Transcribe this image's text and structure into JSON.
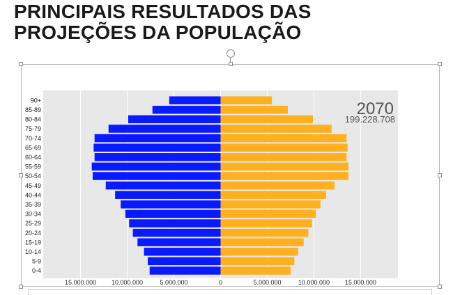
{
  "slide": {
    "title_line1": "PRINCIPAIS RESULTADOS DAS",
    "title_line2": "PROJEÇÕES DA POPULAÇÃO"
  },
  "chart_data": {
    "type": "bar",
    "orientation": "horizontal-population-pyramid",
    "annotation_year": "2070",
    "annotation_total": "199.228.708",
    "categories": [
      "0-4",
      "5-9",
      "10-14",
      "15-19",
      "20-24",
      "25-29",
      "30-34",
      "35-39",
      "40-44",
      "45-49",
      "50-54",
      "55-59",
      "60-64",
      "65-69",
      "70-74",
      "75-79",
      "80-84",
      "85-89",
      "90+"
    ],
    "series": [
      {
        "side": "left",
        "color": "#0a1aff",
        "values": [
          7600000,
          7800000,
          8200000,
          8900000,
          9400000,
          9800000,
          10200000,
          10700000,
          11300000,
          12300000,
          13700000,
          13800000,
          13500000,
          13600000,
          13500000,
          12000000,
          9900000,
          7300000,
          5500000
        ]
      },
      {
        "side": "right",
        "color": "#ffb020",
        "values": [
          7500000,
          7900000,
          8300000,
          8900000,
          9400000,
          9800000,
          10200000,
          10700000,
          11300000,
          12200000,
          13700000,
          13700000,
          13500000,
          13600000,
          13500000,
          11900000,
          9900000,
          7200000,
          5500000
        ]
      }
    ],
    "xticks": [
      -15000000,
      -10000000,
      -5000000,
      0,
      5000000,
      10000000,
      15000000
    ],
    "xtick_labels": [
      "15.000.000",
      "10.000.000",
      "5.000.000",
      "0",
      "5.000.000",
      "10.000.000",
      "15.000.000"
    ],
    "xlim": [
      -19000000,
      19000000
    ],
    "grid": true,
    "background": "#e8e8e8"
  }
}
